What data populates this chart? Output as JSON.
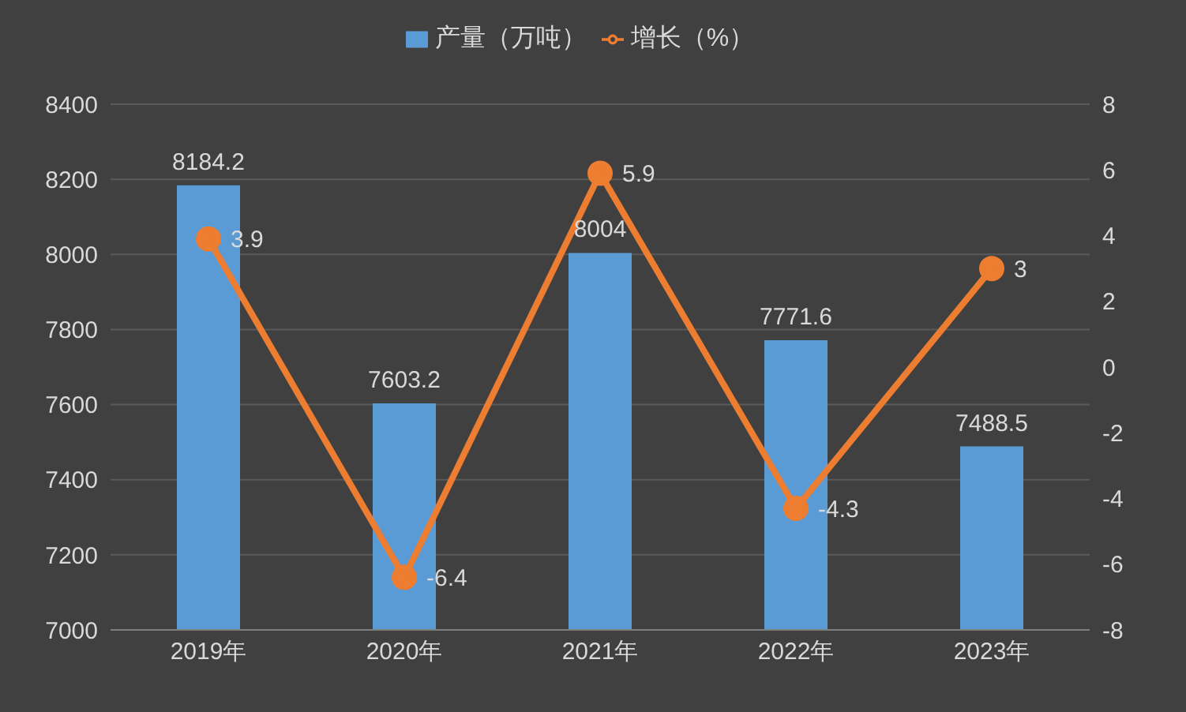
{
  "chart_data": {
    "type": "bar",
    "categories": [
      "2019年",
      "2020年",
      "2021年",
      "2022年",
      "2023年"
    ],
    "series": [
      {
        "name": "产量（万吨）",
        "color": "#5b9bd5",
        "values": [
          8184.2,
          7603.2,
          8004,
          7771.6,
          7488.5
        ]
      },
      {
        "name": "增长（%）",
        "type": "line",
        "axis": "y2",
        "color": "#ed7d31",
        "values": [
          3.9,
          -6.4,
          5.9,
          -4.3,
          3
        ]
      }
    ],
    "ylim": [
      7000,
      8400
    ],
    "yticks": [
      7000,
      7200,
      7400,
      7600,
      7800,
      8000,
      8200,
      8400
    ],
    "y2lim": [
      -8,
      8
    ],
    "y2ticks": [
      -8,
      -6,
      -4,
      -2,
      0,
      2,
      4,
      6,
      8
    ],
    "grid": "y",
    "legend": "top",
    "marker": "circle",
    "data_labels": true
  }
}
